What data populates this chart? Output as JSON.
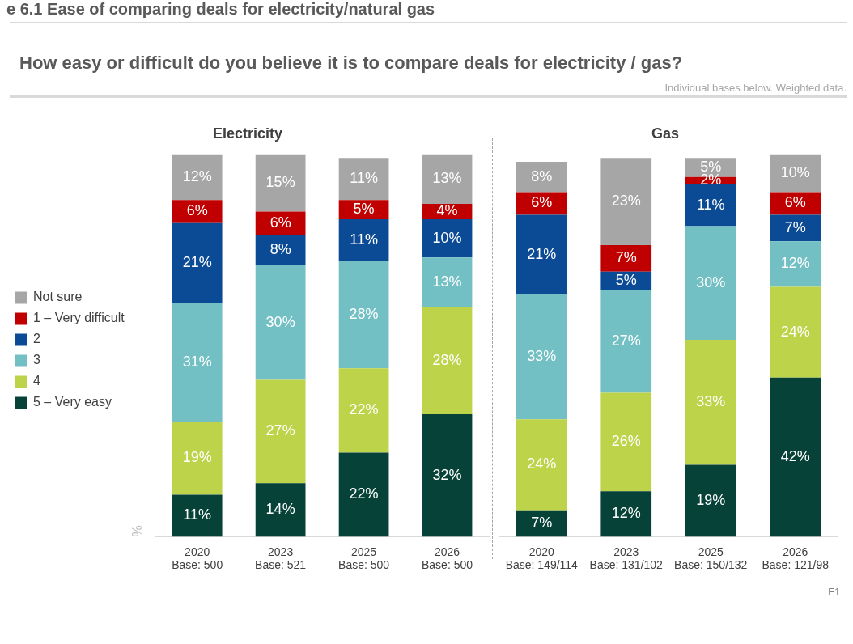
{
  "chart_data": [
    {
      "type": "other",
      "title": "e 6.1 Ease of comparing deals for electricity/natural gas",
      "subtitle": "How easy or difficult do you believe it is to compare deals for electricity / gas?",
      "annotations": [
        "Individual bases below. Weighted data.",
        "E1"
      ]
    },
    {
      "type": "bar",
      "title": "Electricity",
      "stacked": true,
      "legend": "left",
      "ylabel": "%",
      "tick_labels": "x",
      "categories": [
        "2020\nBase: 500",
        "2023\nBase: 521",
        "2025\nBase: 500",
        "2026\nBase: 500"
      ],
      "series": [
        {
          "name": "5 – Very easy",
          "color": "#064237",
          "values": [
            11,
            14,
            22,
            32
          ],
          "value_labels": [
            "11%",
            "14%",
            "22%",
            "32%"
          ]
        },
        {
          "name": "4",
          "color": "#bcd34a",
          "values": [
            19,
            27,
            22,
            28
          ],
          "value_labels": [
            "19%",
            "27%",
            "22%",
            "28%"
          ]
        },
        {
          "name": "3",
          "color": "#72bfc4",
          "values": [
            31,
            30,
            28,
            13
          ],
          "value_labels": [
            "31%",
            "30%",
            "28%",
            "13%"
          ]
        },
        {
          "name": "2",
          "color": "#0b4a94",
          "values": [
            21,
            8,
            11,
            10
          ],
          "value_labels": [
            "21%",
            "8%",
            "11%",
            "10%"
          ]
        },
        {
          "name": "1 – Very difficult",
          "color": "#c00000",
          "values": [
            6,
            6,
            5,
            4
          ],
          "value_labels": [
            "6%",
            "6%",
            "5%",
            "4%"
          ]
        },
        {
          "name": "Not sure",
          "color": "#a6a6a6",
          "values": [
            12,
            15,
            11,
            13
          ],
          "value_labels": [
            "12%",
            "15%",
            "11%",
            "13%"
          ]
        }
      ]
    },
    {
      "type": "bar",
      "title": "Gas",
      "stacked": true,
      "tick_labels": "x",
      "categories": [
        "2020\nBase: 149/114",
        "2023\nBase: 131/102",
        "2025\nBase: 150/132",
        "2026\nBase: 121/98"
      ],
      "series": [
        {
          "color": "#064237",
          "values": [
            7,
            12,
            19,
            42
          ],
          "value_labels": [
            "7%",
            "12%",
            "19%",
            "42%"
          ]
        },
        {
          "color": "#bcd34a",
          "values": [
            24,
            26,
            33,
            24
          ],
          "value_labels": [
            "24%",
            "26%",
            "33%",
            "24%"
          ]
        },
        {
          "color": "#72bfc4",
          "values": [
            33,
            27,
            30,
            12
          ],
          "value_labels": [
            "33%",
            "27%",
            "30%",
            "12%"
          ]
        },
        {
          "color": "#0b4a94",
          "values": [
            21,
            5,
            11,
            7
          ],
          "value_labels": [
            "21%",
            "5%",
            "11%",
            "7%"
          ]
        },
        {
          "color": "#c00000",
          "values": [
            6,
            7,
            2,
            6
          ],
          "value_labels": [
            "6%",
            "7%",
            "2%",
            "6%"
          ]
        },
        {
          "color": "#a6a6a6",
          "values": [
            8,
            23,
            5,
            10
          ],
          "value_labels": [
            "8%",
            "23%",
            "5%",
            "10%"
          ]
        }
      ]
    }
  ]
}
